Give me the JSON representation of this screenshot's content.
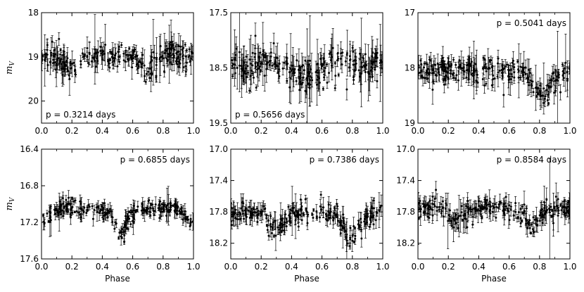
{
  "chart_data": [
    {
      "type": "scatter",
      "annotation": "p = 0.3214 days",
      "annotation_position": "bottom-left",
      "xlabel": "",
      "ylabel": "m_V",
      "xlim": [
        0.0,
        1.0
      ],
      "ylim": [
        20.5,
        18.0
      ],
      "y_inverted": true,
      "xticks": [
        "0.0",
        "0.2",
        "0.4",
        "0.6",
        "0.8",
        "1.0"
      ],
      "yticks": [
        18,
        19,
        20
      ],
      "ytick_labels": [
        "18",
        "19",
        "20"
      ],
      "baseline": 18.95,
      "scatter": 0.15,
      "dips": [
        {
          "center": 0.2,
          "depth": 0.3,
          "width": 0.05
        },
        {
          "center": 0.7,
          "depth": 0.4,
          "width": 0.05
        }
      ],
      "n_points": 260
    },
    {
      "type": "scatter",
      "annotation": "p = 0.5656 days",
      "annotation_position": "bottom-left",
      "xlabel": "",
      "ylabel": "",
      "xlim": [
        0.0,
        1.0
      ],
      "ylim": [
        19.5,
        17.5
      ],
      "y_inverted": true,
      "xticks": [
        "0.0",
        "0.2",
        "0.4",
        "0.6",
        "0.8",
        "1.0"
      ],
      "yticks": [
        17.5,
        18.5,
        19.5
      ],
      "ytick_labels": [
        "17.5",
        "18.5",
        "19.5"
      ],
      "baseline": 18.45,
      "scatter": 0.15,
      "dips": [
        {
          "center": 0.48,
          "depth": 0.2,
          "width": 0.06
        }
      ],
      "n_points": 260
    },
    {
      "type": "scatter",
      "annotation": "p = 0.5041 days",
      "annotation_position": "top-right",
      "xlabel": "",
      "ylabel": "",
      "xlim": [
        0.0,
        1.0
      ],
      "ylim": [
        19.0,
        17.0
      ],
      "y_inverted": true,
      "xticks": [
        "0.0",
        "0.2",
        "0.4",
        "0.6",
        "0.8",
        "1.0"
      ],
      "yticks": [
        17,
        18,
        19
      ],
      "ytick_labels": [
        "17",
        "18",
        "19"
      ],
      "baseline": 18.05,
      "scatter": 0.12,
      "dips": [
        {
          "center": 0.82,
          "depth": 0.45,
          "width": 0.06
        }
      ],
      "n_points": 260
    },
    {
      "type": "scatter",
      "annotation": "p = 0.6855 days",
      "annotation_position": "top-right",
      "xlabel": "Phase",
      "ylabel": "m_V",
      "xlim": [
        0.0,
        1.0
      ],
      "ylim": [
        17.6,
        16.4
      ],
      "y_inverted": true,
      "xticks": [
        "0.0",
        "0.2",
        "0.4",
        "0.6",
        "0.8",
        "1.0"
      ],
      "yticks": [
        16.4,
        16.8,
        17.2,
        17.6
      ],
      "ytick_labels": [
        "16.4",
        "16.8",
        "17.2",
        "17.6"
      ],
      "baseline": 17.05,
      "scatter": 0.05,
      "dips": [
        {
          "center": 0.0,
          "depth": 0.12,
          "width": 0.05
        },
        {
          "center": 1.0,
          "depth": 0.12,
          "width": 0.05
        },
        {
          "center": 0.52,
          "depth": 0.25,
          "width": 0.045
        }
      ],
      "n_points": 260
    },
    {
      "type": "scatter",
      "annotation": "p = 0.7386 days",
      "annotation_position": "top-right",
      "xlabel": "Phase",
      "ylabel": "",
      "xlim": [
        0.0,
        1.0
      ],
      "ylim": [
        18.4,
        17.0
      ],
      "y_inverted": true,
      "xticks": [
        "0.0",
        "0.2",
        "0.4",
        "0.6",
        "0.8",
        "1.0"
      ],
      "yticks": [
        17.0,
        17.4,
        17.8,
        18.2
      ],
      "ytick_labels": [
        "17.0",
        "17.4",
        "17.8",
        "18.2"
      ],
      "baseline": 17.8,
      "scatter": 0.07,
      "dips": [
        {
          "center": 0.3,
          "depth": 0.25,
          "width": 0.05
        },
        {
          "center": 0.8,
          "depth": 0.35,
          "width": 0.05
        }
      ],
      "n_points": 260
    },
    {
      "type": "scatter",
      "annotation": "p = 0.8584 days",
      "annotation_position": "top-right",
      "xlabel": "Phase",
      "ylabel": "",
      "xlim": [
        0.0,
        1.0
      ],
      "ylim": [
        18.4,
        17.0
      ],
      "y_inverted": true,
      "xticks": [
        "0.0",
        "0.2",
        "0.4",
        "0.6",
        "0.8",
        "1.0"
      ],
      "yticks": [
        17.0,
        17.4,
        17.8,
        18.2
      ],
      "ytick_labels": [
        "17.0",
        "17.4",
        "17.8",
        "18.2"
      ],
      "baseline": 17.75,
      "scatter": 0.07,
      "dips": [
        {
          "center": 0.25,
          "depth": 0.15,
          "width": 0.05
        },
        {
          "center": 0.75,
          "depth": 0.22,
          "width": 0.05
        }
      ],
      "n_points": 260
    }
  ],
  "colors": {
    "marker": "#000000",
    "axes": "#000000",
    "background": "#ffffff"
  }
}
